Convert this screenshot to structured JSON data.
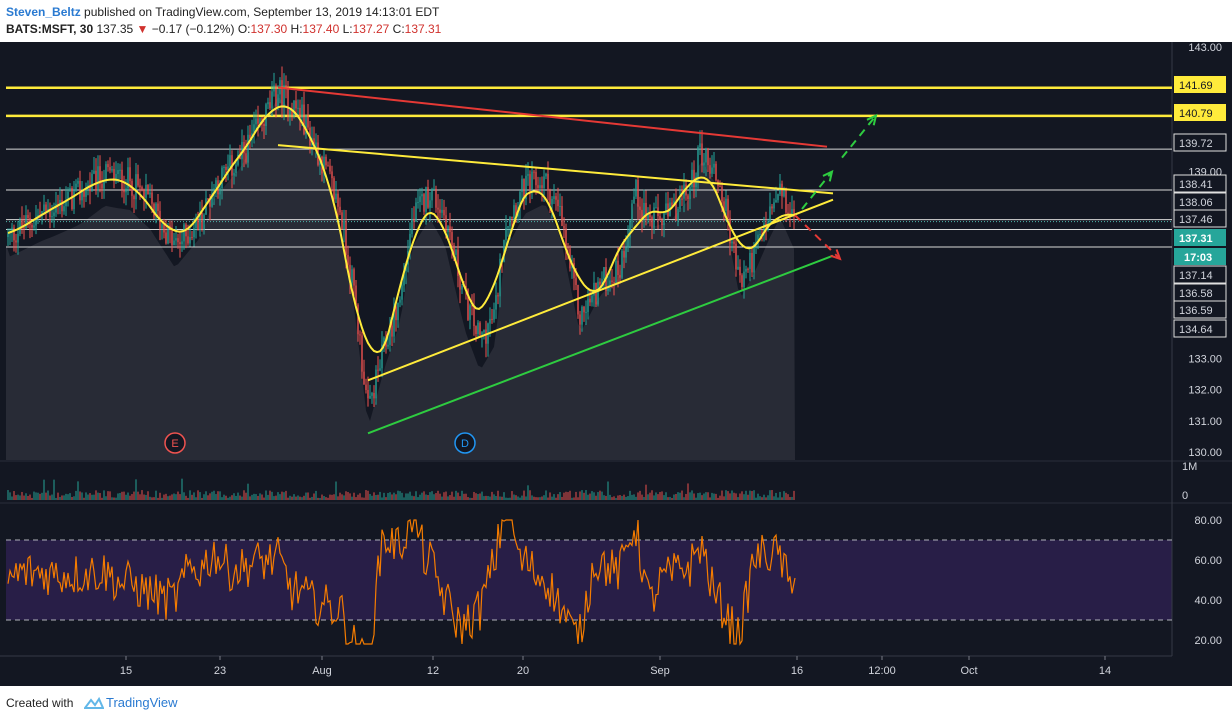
{
  "header": {
    "author": "Steven_Beltz",
    "published": "published on TradingView.com, September 13, 2019 14:13:01 EDT",
    "symbol": "BATS:MSFT, 30",
    "last": "137.35",
    "change": "−0.17 (−0.12%)",
    "o_label": "O:",
    "o": "137.30",
    "h_label": "H:",
    "h": "137.40",
    "l_label": "L:",
    "l": "137.27",
    "c_label": "C:",
    "c": "137.31"
  },
  "footer": {
    "created_with": "Created with",
    "brand": "TradingView"
  },
  "colors": {
    "background": "#131722",
    "up": "#26a69a",
    "down": "#ef5350",
    "yellow": "#ffeb3b",
    "red_line": "#e53935",
    "green_line": "#2ecc40",
    "rsi": "#f57c00",
    "rsi_band": "#2b1f4b",
    "ma_fill": "#3a3d47"
  },
  "chart_data": [
    {
      "type": "candlestick",
      "name": "price",
      "interval": "30",
      "price_axis": [
        143.0,
        139.0,
        133.0,
        132.0,
        131.0,
        130.0
      ],
      "price_labels": [
        {
          "value": 141.69,
          "style": "yellow"
        },
        {
          "value": 140.79,
          "style": "yellow"
        },
        {
          "value": 139.72,
          "style": "white"
        },
        {
          "value": 138.41,
          "style": "white"
        },
        {
          "value": 138.06,
          "style": "white"
        },
        {
          "value": 137.46,
          "style": "white"
        },
        {
          "value": 137.31,
          "style": "current",
          "countdown": "17:03"
        },
        {
          "value": 137.14,
          "style": "white"
        },
        {
          "value": 136.58,
          "style": "white"
        },
        {
          "value": 136.59,
          "style": "white"
        },
        {
          "value": 134.64,
          "style": "white"
        }
      ],
      "x_ticks": [
        "15",
        "23",
        "Aug",
        "12",
        "20",
        "Sep",
        "16",
        "12:00",
        "Oct",
        "14"
      ],
      "markers": [
        "E",
        "D"
      ],
      "horizontal_lines": [
        {
          "value": 141.69,
          "color": "yellow"
        },
        {
          "value": 140.79,
          "color": "yellow"
        },
        {
          "value": 139.72,
          "color": "white"
        },
        {
          "value": 138.41,
          "color": "white"
        },
        {
          "value": 137.46,
          "color": "white"
        },
        {
          "value": 137.14,
          "color": "white"
        },
        {
          "value": 136.58,
          "color": "white"
        }
      ],
      "trendlines": [
        {
          "color": "red",
          "from": {
            "x": "Jul 26",
            "y": 141.7
          },
          "to": {
            "x": "Sep 17",
            "y": 139.8
          }
        },
        {
          "color": "yellow",
          "from": {
            "x": "Jul 26",
            "y": 139.85
          },
          "to": {
            "x": "Sep 18",
            "y": 138.3
          }
        },
        {
          "color": "yellow",
          "from": {
            "x": "Aug 5",
            "y": 132.3
          },
          "to": {
            "x": "Sep 18",
            "y": 138.1
          }
        },
        {
          "color": "green",
          "from": {
            "x": "Aug 5",
            "y": 130.6
          },
          "to": {
            "x": "Sep 18",
            "y": 136.3
          }
        }
      ],
      "projections": [
        {
          "color": "green",
          "direction": "up",
          "target": 140.8
        },
        {
          "color": "green",
          "direction": "up",
          "target": 139.0
        },
        {
          "color": "red",
          "direction": "down",
          "target": 136.2
        }
      ],
      "moving_average": {
        "color": "yellow"
      }
    },
    {
      "type": "bar",
      "name": "volume",
      "axis": [
        "1M",
        "0"
      ]
    },
    {
      "type": "line",
      "name": "RSI",
      "axis": [
        80.0,
        60.0,
        40.0,
        20.0
      ],
      "axis_labels": [
        "80.00",
        "60.00",
        "40.00",
        "20.00"
      ],
      "bands": [
        70,
        30
      ],
      "last_value": 51
    }
  ]
}
